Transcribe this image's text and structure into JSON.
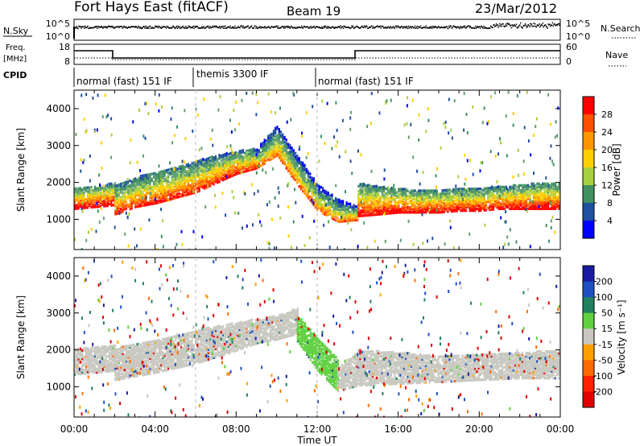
{
  "header": {
    "station": "Fort Hays East (fitACF)",
    "beam": "Beam 19",
    "date": "23/Mar/2012"
  },
  "strips": {
    "nsky": {
      "label": "N.Sky",
      "tick_top": "10^5",
      "tick_bottom": "10^0"
    },
    "nsearch": {
      "label": "N.Search",
      "tick_top": "10^5",
      "tick_bottom": "10^0"
    },
    "freq": {
      "label_line1": "Freq.",
      "label_line2": "[MHz]",
      "tick_top": "18",
      "tick_bottom": "8"
    },
    "nave": {
      "label": "Nave",
      "tick_top": "60",
      "tick_bottom": "0"
    },
    "cpid": {
      "label": "CPID",
      "segments": [
        {
          "label": "normal (fast) 151 IF",
          "start_h": 0,
          "end_h": 6
        },
        {
          "label": "themis 3300 IF",
          "start_h": 6,
          "end_h": 12
        },
        {
          "label": "normal (fast) 151 IF",
          "start_h": 12,
          "end_h": 24
        }
      ]
    }
  },
  "power_panel": {
    "ylabel": "Slant Range [km]",
    "colorbar_label": "Power [dB]",
    "colorbar_ticks": [
      "28",
      "24",
      "20",
      "16",
      "12",
      "8",
      "4"
    ],
    "colorbar_colors": [
      "#ff0000",
      "#ff5000",
      "#ff9600",
      "#ffd000",
      "#a8d040",
      "#409060",
      "#2050a0",
      "#0000ff"
    ]
  },
  "velocity_panel": {
    "ylabel": "Slant Range [km]",
    "colorbar_label": "Velocity [m s⁻¹]",
    "colorbar_ticks": [
      "200",
      "100",
      "50",
      "15",
      "-15",
      "-50",
      "-100",
      "-200"
    ],
    "colorbar_colors": [
      "#1a1aa0",
      "#2050c0",
      "#208060",
      "#60d040",
      "#c8c8c0",
      "#ffa000",
      "#ff6a00",
      "#ff2000",
      "#e00000"
    ]
  },
  "x_axis": {
    "label": "Time UT",
    "ticks": [
      "00:00",
      "04:00",
      "08:00",
      "12:00",
      "16:00",
      "20:00",
      "00:00"
    ]
  },
  "chart_data": [
    {
      "type": "heatmap",
      "title": "Power",
      "xlabel": "Time UT",
      "ylabel": "Slant Range [km]",
      "x_unit": "hours UT",
      "xlim": [
        0,
        24
      ],
      "ylim": [
        180,
        4500
      ],
      "y_ticks": [
        1000,
        2000,
        3000,
        4000
      ],
      "colorbar": {
        "label": "Power [dB]",
        "range": [
          0,
          30
        ],
        "ticks": [
          4,
          8,
          12,
          16,
          20,
          24,
          28
        ]
      },
      "echo_bands": [
        {
          "x": [
            0.0,
            1.0,
            2.0
          ],
          "range_lo": [
            1250,
            1300,
            1350
          ],
          "range_hi": [
            1800,
            1850,
            1950
          ],
          "power_db": 25
        },
        {
          "x": [
            2.0,
            3.0,
            4.0,
            5.0,
            6.0,
            7.0,
            8.0,
            9.0
          ],
          "range_lo": [
            1100,
            1300,
            1400,
            1550,
            1700,
            1950,
            2200,
            2350
          ],
          "range_hi": [
            1900,
            2100,
            2250,
            2400,
            2550,
            2700,
            2800,
            2900
          ],
          "power_db": 22
        },
        {
          "x": [
            9.0,
            10.0,
            11.0,
            12.0,
            13.0,
            14.0
          ],
          "range_lo": [
            2350,
            2700,
            1900,
            1200,
            900,
            950
          ],
          "range_hi": [
            2900,
            3500,
            2700,
            1900,
            1500,
            1300
          ],
          "power_db": 18
        },
        {
          "x": [
            14.0,
            15.0,
            16.0,
            17.0,
            18.0,
            19.0,
            20.0,
            21.0,
            22.0,
            23.0,
            24.0
          ],
          "range_lo": [
            1050,
            1100,
            1150,
            1150,
            1150,
            1200,
            1200,
            1250,
            1250,
            1250,
            1250
          ],
          "range_hi": [
            1950,
            1850,
            1800,
            1750,
            1750,
            1800,
            1800,
            1850,
            1900,
            1950,
            1950
          ],
          "power_db": 24
        }
      ]
    },
    {
      "type": "heatmap",
      "title": "Velocity",
      "xlabel": "Time UT",
      "ylabel": "Slant Range [km]",
      "x_unit": "hours UT",
      "xlim": [
        0,
        24
      ],
      "ylim": [
        180,
        4500
      ],
      "y_ticks": [
        1000,
        2000,
        3000,
        4000
      ],
      "colorbar": {
        "label": "Velocity [m s⁻¹]",
        "range": [
          -250,
          250
        ],
        "ticks": [
          200,
          100,
          50,
          15,
          -15,
          -50,
          -100,
          -200
        ]
      },
      "echo_bands": [
        {
          "x": [
            0.0,
            1.0,
            2.0
          ],
          "range_lo": [
            1300,
            1350,
            1400
          ],
          "range_hi": [
            2000,
            2050,
            2100
          ],
          "velocity": 0
        },
        {
          "x": [
            2.0,
            4.0,
            6.0,
            8.0,
            9.0,
            10.0,
            11.0
          ],
          "range_lo": [
            1150,
            1350,
            1600,
            1950,
            2150,
            2250,
            2400
          ],
          "range_hi": [
            2000,
            2250,
            2500,
            2700,
            2800,
            2900,
            3100
          ],
          "velocity": 0
        },
        {
          "x": [
            11.0,
            12.0,
            13.0
          ],
          "range_lo": [
            2200,
            1400,
            850
          ],
          "range_hi": [
            2900,
            2300,
            1700
          ],
          "velocity": 40
        },
        {
          "x": [
            13.0,
            14.0,
            16.0,
            18.0,
            20.0,
            22.0,
            24.0
          ],
          "range_lo": [
            850,
            1000,
            1050,
            1100,
            1150,
            1200,
            1200
          ],
          "range_hi": [
            1500,
            1950,
            1900,
            1800,
            1850,
            1900,
            1950
          ],
          "velocity": 0
        }
      ]
    }
  ]
}
